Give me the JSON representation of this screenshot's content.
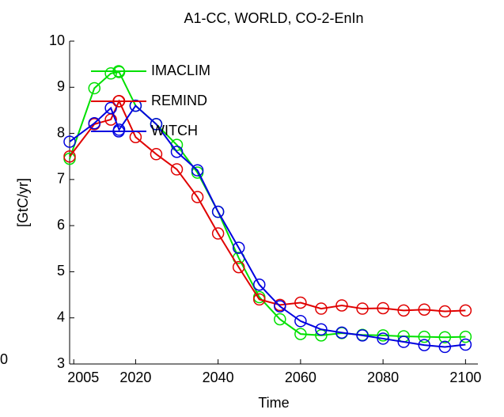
{
  "chart_data": {
    "type": "line",
    "title": "A1-CC, WORLD, CO-2-EnIn",
    "xlabel": "Time",
    "ylabel": "[GtC/yr]",
    "stray_label": "0",
    "x": [
      2004,
      2010,
      2014,
      2016,
      2020,
      2025,
      2030,
      2035,
      2040,
      2045,
      2050,
      2055,
      2060,
      2065,
      2070,
      2075,
      2080,
      2085,
      2090,
      2095,
      2100
    ],
    "series": [
      {
        "name": "IMACLIM",
        "color": "#00e000",
        "values": [
          7.45,
          8.98,
          9.3,
          9.33,
          8.6,
          8.2,
          7.75,
          7.15,
          6.3,
          5.3,
          4.45,
          3.97,
          3.65,
          3.62,
          3.67,
          3.63,
          3.62,
          3.6,
          3.59,
          3.58,
          3.59
        ]
      },
      {
        "name": "REMIND",
        "color": "#e00000",
        "values": [
          7.5,
          8.2,
          8.3,
          8.7,
          7.92,
          7.55,
          7.22,
          6.62,
          5.83,
          5.1,
          4.4,
          4.28,
          4.33,
          4.2,
          4.27,
          4.2,
          4.21,
          4.16,
          4.18,
          4.14,
          4.16
        ]
      },
      {
        "name": "WITCH",
        "color": "#0000e0",
        "values": [
          7.82,
          8.22,
          8.55,
          8.08,
          8.6,
          8.2,
          7.6,
          7.2,
          6.3,
          5.52,
          4.72,
          4.25,
          3.93,
          3.75,
          3.68,
          3.62,
          3.55,
          3.48,
          3.41,
          3.37,
          3.42
        ]
      }
    ],
    "xlim": [
      2004,
      2103
    ],
    "xticks": [
      2005,
      2020,
      2040,
      2060,
      2080,
      2100
    ],
    "ylim": [
      3,
      10
    ],
    "yticks": [
      3,
      4,
      5,
      6,
      7,
      8,
      9,
      10
    ],
    "grid": false,
    "legend": "upper-left",
    "marker": "circle"
  }
}
